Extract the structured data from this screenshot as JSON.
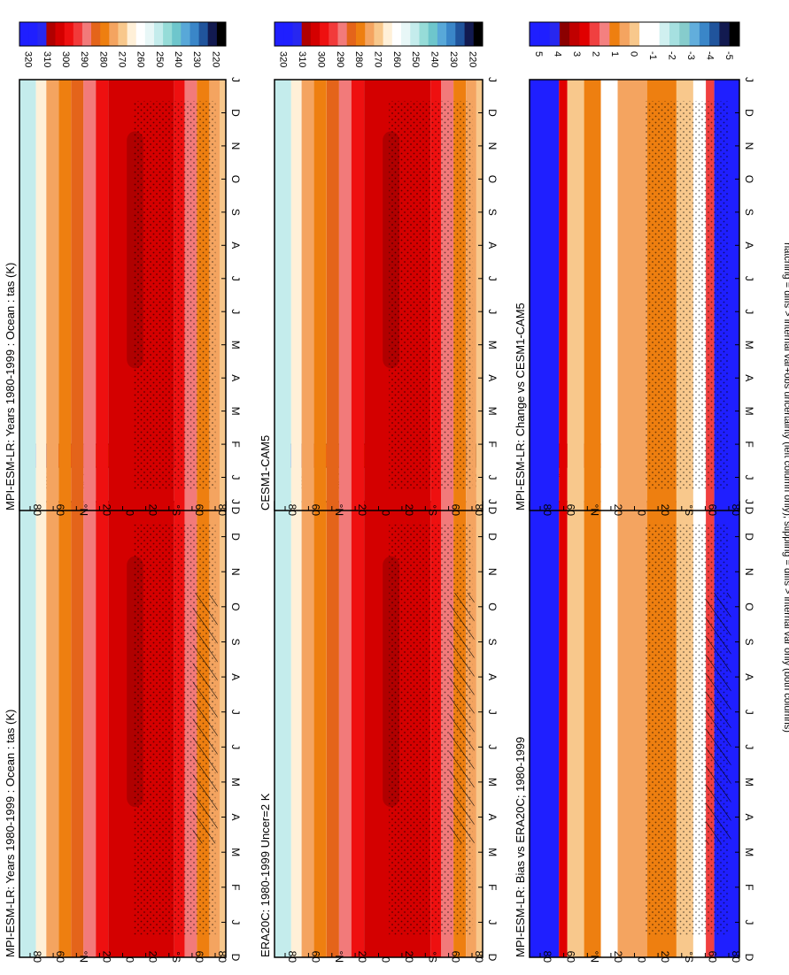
{
  "footnote": "hatching = diffs > internal var+obs uncertainty (left column only); stippling = diffs > internal var only (both columns)",
  "month_ticks": [
    "D",
    "J",
    "F",
    "M",
    "A",
    "M",
    "J",
    "J",
    "A",
    "S",
    "O",
    "N",
    "D",
    "J"
  ],
  "lat_ticks": [
    "80",
    "60",
    "°N",
    "20",
    "0",
    "20",
    "°S",
    "60",
    "80"
  ],
  "colorbars": {
    "absolute": {
      "labels": [
        "320",
        "310",
        "300",
        "290",
        "280",
        "270",
        "260",
        "250",
        "240",
        "230",
        "220"
      ],
      "colors": [
        "#1f1fff",
        "#1f1fff",
        "#2727f0",
        "#b00000",
        "#d40000",
        "#ee1010",
        "#f23a3a",
        "#f27a7a",
        "#e4641a",
        "#ee7f10",
        "#f4a460",
        "#f8c88c",
        "#fff0d8",
        "#ffffff",
        "#e8f7f7",
        "#c4ecec",
        "#96dcd8",
        "#6ec6cc",
        "#58a8d8",
        "#3a86c8",
        "#20549c",
        "#121a50",
        "#000000"
      ]
    },
    "difference": {
      "labels": [
        "5",
        "4",
        "3",
        "2",
        "1",
        "0",
        "-1",
        "-2",
        "-3",
        "-4",
        "-5"
      ],
      "colors": [
        "#1f1fff",
        "#1f1fff",
        "#2727f0",
        "#8b0000",
        "#c00000",
        "#e00000",
        "#f04040",
        "#f48080",
        "#ee7f10",
        "#f4a460",
        "#f8c88c",
        "#ffffff",
        "#ffffff",
        "#d0f0f0",
        "#a6e0e0",
        "#86cccc",
        "#62aedc",
        "#3a86c8",
        "#20549c",
        "#121a50",
        "#000000"
      ]
    }
  },
  "panels": [
    {
      "id": "model-left",
      "title": "MPI-ESM-LR: Years 1980-1999 : Ocean : tas (K)",
      "kind": "absolute",
      "hatch": true
    },
    {
      "id": "model-right",
      "title": "MPI-ESM-LR: Years 1980-1999 : Ocean : tas (K)",
      "kind": "absolute",
      "hatch": false
    },
    {
      "id": "reference-left",
      "title": "ERA20C: 1980-1999 Uncer=2 K",
      "kind": "absolute",
      "hatch": true
    },
    {
      "id": "reference-right",
      "title": "CESM1-CAM5",
      "kind": "absolute",
      "hatch": false
    },
    {
      "id": "bias-left",
      "title": "MPI-ESM-LR: Bias vs ERA20C; 1980-1999",
      "kind": "difference",
      "hatch": true
    },
    {
      "id": "change-right",
      "title": "MPI-ESM-LR: Change vs CESM1-CAM5",
      "kind": "difference",
      "hatch": false
    }
  ],
  "chart_data": [
    {
      "type": "heatmap",
      "title": "MPI-ESM-LR: Years 1980-1999 : Ocean : tas (K)",
      "x": [
        "D",
        "J",
        "F",
        "M",
        "A",
        "M",
        "J",
        "J",
        "A",
        "S",
        "O",
        "N",
        "D",
        "J"
      ],
      "y": [
        "80",
        "60",
        "°N",
        "20",
        "0",
        "20",
        "°S",
        "60",
        "80"
      ],
      "colorbar": [
        320,
        310,
        300,
        290,
        280,
        270,
        260,
        250,
        240,
        230,
        220
      ]
    },
    {
      "type": "heatmap",
      "title": "MPI-ESM-LR: Years 1980-1999 : Ocean : tas (K)",
      "x": [
        "D",
        "J",
        "F",
        "M",
        "A",
        "M",
        "J",
        "J",
        "A",
        "S",
        "O",
        "N",
        "D",
        "J"
      ],
      "y": [
        "80",
        "60",
        "°N",
        "20",
        "0",
        "20",
        "°S",
        "60",
        "80"
      ],
      "colorbar": [
        320,
        310,
        300,
        290,
        280,
        270,
        260,
        250,
        240,
        230,
        220
      ]
    },
    {
      "type": "heatmap",
      "title": "ERA20C: 1980-1999 Uncer=2 K",
      "x": [
        "D",
        "J",
        "F",
        "M",
        "A",
        "M",
        "J",
        "J",
        "A",
        "S",
        "O",
        "N",
        "D",
        "J"
      ],
      "y": [
        "80",
        "60",
        "°N",
        "20",
        "0",
        "20",
        "°S",
        "60",
        "80"
      ],
      "colorbar": [
        320,
        310,
        300,
        290,
        280,
        270,
        260,
        250,
        240,
        230,
        220
      ]
    },
    {
      "type": "heatmap",
      "title": "CESM1-CAM5",
      "x": [
        "D",
        "J",
        "F",
        "M",
        "A",
        "M",
        "J",
        "J",
        "A",
        "S",
        "O",
        "N",
        "D",
        "J"
      ],
      "y": [
        "80",
        "60",
        "°N",
        "20",
        "0",
        "20",
        "°S",
        "60",
        "80"
      ],
      "colorbar": [
        320,
        310,
        300,
        290,
        280,
        270,
        260,
        250,
        240,
        230,
        220
      ]
    },
    {
      "type": "heatmap",
      "title": "MPI-ESM-LR: Bias vs ERA20C; 1980-1999",
      "x": [
        "D",
        "J",
        "F",
        "M",
        "A",
        "M",
        "J",
        "J",
        "A",
        "S",
        "O",
        "N",
        "D",
        "J"
      ],
      "y": [
        "80",
        "60",
        "°N",
        "20",
        "0",
        "20",
        "°S",
        "60",
        "80"
      ],
      "colorbar": [
        5,
        4,
        3,
        2,
        1,
        0,
        -1,
        -2,
        -3,
        -4,
        -5
      ]
    },
    {
      "type": "heatmap",
      "title": "MPI-ESM-LR: Change vs CESM1-CAM5",
      "x": [
        "D",
        "J",
        "F",
        "M",
        "A",
        "M",
        "J",
        "J",
        "A",
        "S",
        "O",
        "N",
        "D",
        "J"
      ],
      "y": [
        "80",
        "60",
        "°N",
        "20",
        "0",
        "20",
        "°S",
        "60",
        "80"
      ],
      "colorbar": [
        5,
        4,
        3,
        2,
        1,
        0,
        -1,
        -2,
        -3,
        -4,
        -5
      ]
    }
  ]
}
